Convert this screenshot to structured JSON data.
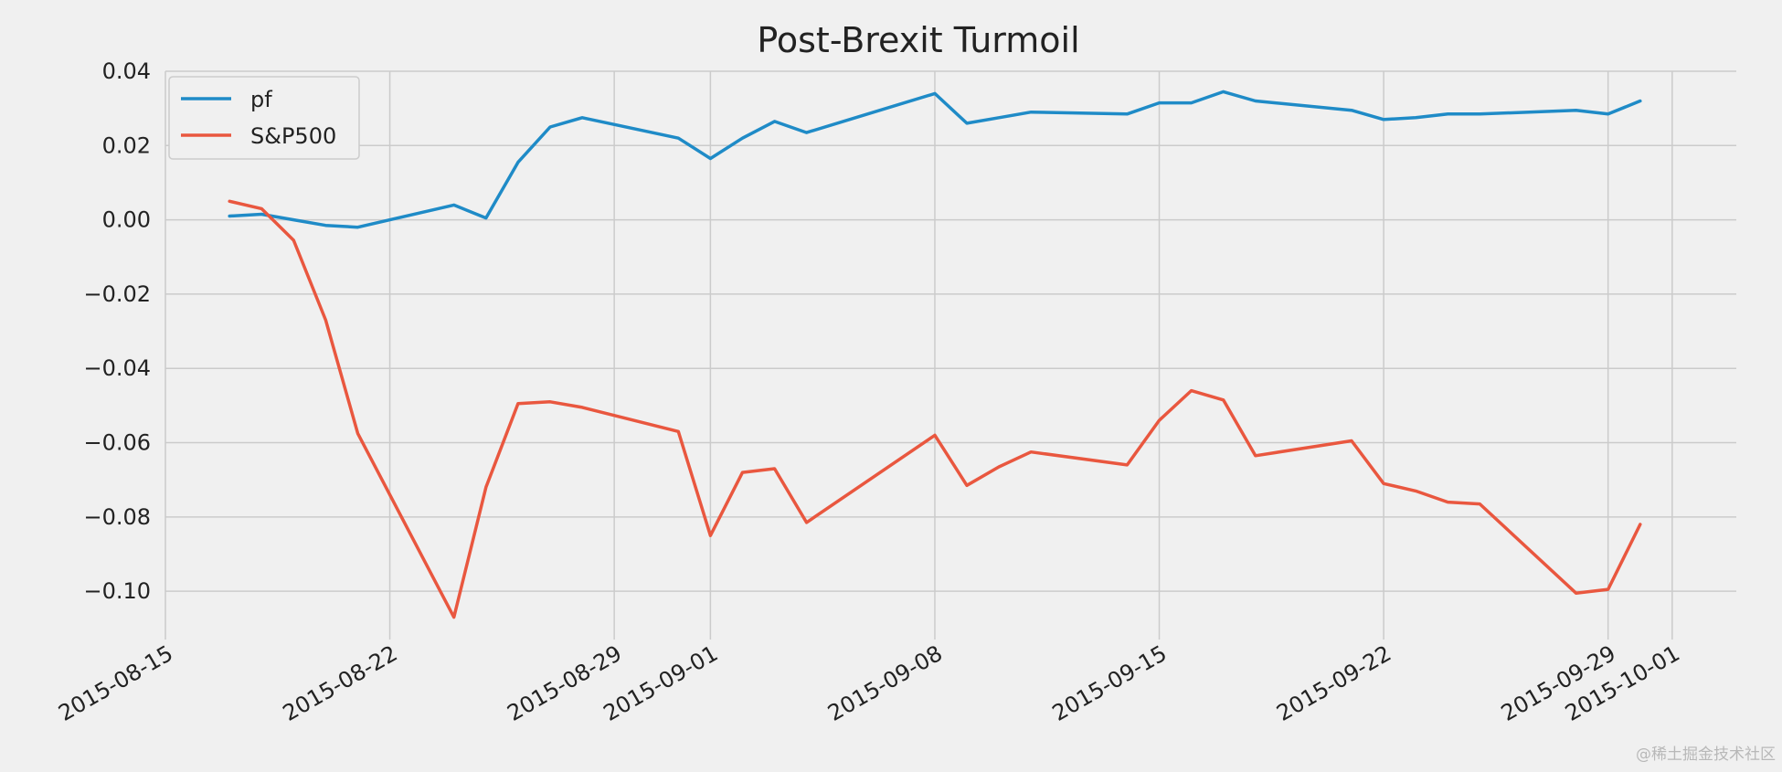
{
  "chart_data": {
    "type": "line",
    "title": "Post-Brexit Turmoil",
    "xlabel": "",
    "ylabel": "",
    "x_type": "date",
    "xlim": [
      "2015-08-15",
      "2015-10-03"
    ],
    "ylim": [
      -0.113,
      0.04
    ],
    "xticks": [
      "2015-08-15",
      "2015-08-22",
      "2015-08-29",
      "2015-09-01",
      "2015-09-08",
      "2015-09-15",
      "2015-09-22",
      "2015-09-29",
      "2015-10-01"
    ],
    "yticks": [
      0.04,
      0.02,
      0.0,
      -0.02,
      -0.04,
      -0.06,
      -0.08,
      -0.1
    ],
    "ytick_labels": [
      "0.04",
      "0.02",
      "0.00",
      "−0.02",
      "−0.04",
      "−0.06",
      "−0.08",
      "−0.10"
    ],
    "grid": true,
    "legend_position": "top-left",
    "x": [
      "2015-08-17",
      "2015-08-18",
      "2015-08-19",
      "2015-08-20",
      "2015-08-21",
      "2015-08-24",
      "2015-08-25",
      "2015-08-26",
      "2015-08-27",
      "2015-08-28",
      "2015-08-31",
      "2015-09-01",
      "2015-09-02",
      "2015-09-03",
      "2015-09-04",
      "2015-09-08",
      "2015-09-09",
      "2015-09-10",
      "2015-09-11",
      "2015-09-14",
      "2015-09-15",
      "2015-09-16",
      "2015-09-17",
      "2015-09-18",
      "2015-09-21",
      "2015-09-22",
      "2015-09-23",
      "2015-09-24",
      "2015-09-25",
      "2015-09-28",
      "2015-09-29",
      "2015-09-30"
    ],
    "series": [
      {
        "name": "pf",
        "color": "#1f8bc7",
        "values": [
          0.001,
          0.0015,
          0.0,
          -0.0015,
          -0.002,
          0.004,
          0.0005,
          0.0155,
          0.025,
          0.0275,
          0.022,
          0.0165,
          0.022,
          0.0265,
          0.0235,
          0.034,
          0.026,
          0.0275,
          0.029,
          0.0285,
          0.0315,
          0.0315,
          0.0345,
          0.032,
          0.0295,
          0.027,
          0.0275,
          0.0285,
          0.0285,
          0.0295,
          0.0285,
          0.032
        ]
      },
      {
        "name": "S&P500",
        "color": "#e9573f",
        "values": [
          0.005,
          0.003,
          -0.0055,
          -0.027,
          -0.0575,
          -0.107,
          -0.072,
          -0.0495,
          -0.049,
          -0.0505,
          -0.057,
          -0.085,
          -0.068,
          -0.067,
          -0.0815,
          -0.058,
          -0.0715,
          -0.0665,
          -0.0625,
          -0.066,
          -0.054,
          -0.046,
          -0.0485,
          -0.0635,
          -0.0595,
          -0.071,
          -0.073,
          -0.076,
          -0.0765,
          -0.1005,
          -0.0995,
          -0.082
        ]
      }
    ]
  },
  "watermark": "@稀土掘金技术社区",
  "colors": {
    "background": "#f0f0f0",
    "grid": "#cbcbcb",
    "text": "#222222"
  }
}
